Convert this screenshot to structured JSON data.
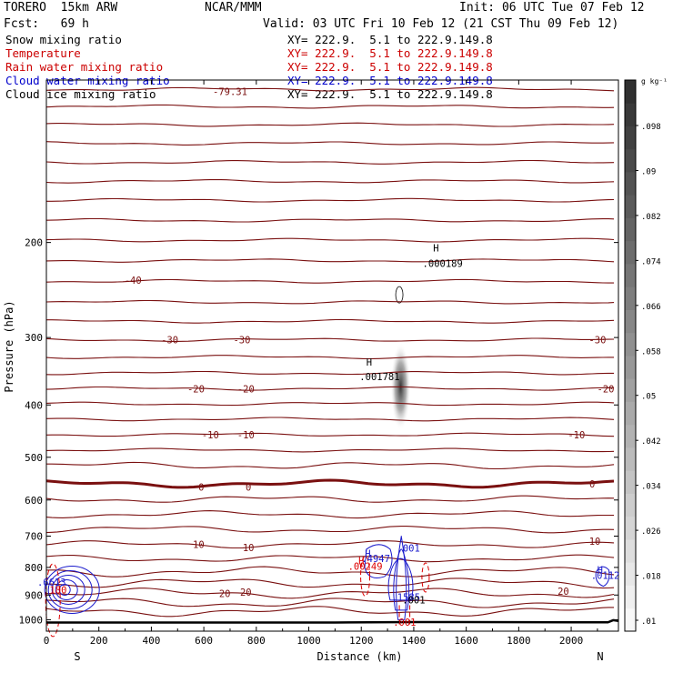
{
  "header": {
    "model": "TORERO  15km ARW",
    "org": "NCAR/MMM",
    "init": "Init: 06 UTC Tue 07 Feb 12",
    "fcst": "Fcst:   69 h",
    "valid": "Valid: 03 UTC Fri 10 Feb 12 (21 CST Thu 09 Feb 12)"
  },
  "fields": [
    {
      "name": "Snow mixing ratio",
      "xy": "XY= 222.9.  5.1 to 222.9.149.8",
      "color": "#000000"
    },
    {
      "name": "Temperature",
      "xy": "XY= 222.9.  5.1 to 222.9.149.8",
      "color": "#cc0000"
    },
    {
      "name": "Rain water mixing ratio",
      "xy": "XY= 222.9.  5.1 to 222.9.149.8",
      "color": "#cc0000"
    },
    {
      "name": "Cloud water mixing ratio",
      "xy": "XY= 222.9.  5.1 to 222.9.149.8",
      "color": "#0000cc"
    },
    {
      "name": "Cloud ice mixing ratio",
      "xy": "XY= 222.9.  5.1 to 222.9.149.8",
      "color": "#000000"
    }
  ],
  "colors": {
    "temperature": "#7a1010",
    "cloud_water": "#1a1acc",
    "rain_water": "#dd0000",
    "ground": "#000000"
  },
  "chart_data": {
    "type": "contour cross-section",
    "xlabel": "Distance (km)",
    "ylabel": "Pressure (hPa)",
    "xlim": [
      0,
      2180
    ],
    "ylim": [
      1050,
      100
    ],
    "y_scale": "log",
    "x_ticks": [
      "0",
      "200",
      "400",
      "600",
      "800",
      "1000",
      "1200",
      "1400",
      "1600",
      "1800",
      "2000"
    ],
    "y_ticks": [
      "200",
      "300",
      "400",
      "500",
      "600",
      "700",
      "800",
      "900",
      "1000"
    ],
    "end_labels": {
      "left": "S",
      "right": "N"
    },
    "temperature_contours": [
      {
        "p": 104
      },
      {
        "p": 112
      },
      {
        "p": 121
      },
      {
        "p": 131
      },
      {
        "p": 142
      },
      {
        "p": 154
      },
      {
        "p": 167
      },
      {
        "p": 182
      },
      {
        "p": 198
      },
      {
        "p": 216
      },
      {
        "p": 236
      },
      {
        "p": 258
      },
      {
        "p": 280
      },
      {
        "p": 303
      },
      {
        "p": 326
      },
      {
        "p": 349
      },
      {
        "p": 373
      },
      {
        "p": 398
      },
      {
        "p": 425
      },
      {
        "p": 454
      },
      {
        "p": 485
      },
      {
        "p": 518
      },
      {
        "p": 560,
        "thick": true
      },
      {
        "p": 598
      },
      {
        "p": 638
      },
      {
        "p": 680
      },
      {
        "p": 725
      },
      {
        "p": 770
      },
      {
        "p": 815
      },
      {
        "p": 855
      },
      {
        "p": 893
      },
      {
        "p": 930
      },
      {
        "p": 965
      }
    ],
    "temperature_labels": [
      {
        "text": "-79.31",
        "x": 700,
        "p": 105
      },
      {
        "text": "-40",
        "x": 330,
        "p": 235
      },
      {
        "text": "-30",
        "x": 470,
        "p": 303
      },
      {
        "text": "-30",
        "x": 745,
        "p": 303
      },
      {
        "text": "-30",
        "x": 2100,
        "p": 303
      },
      {
        "text": "-20",
        "x": 570,
        "p": 373
      },
      {
        "text": "-20",
        "x": 760,
        "p": 373
      },
      {
        "text": "-20",
        "x": 2150,
        "p": 373
      },
      {
        "text": "-10",
        "x": 625,
        "p": 454
      },
      {
        "text": "-10",
        "x": 760,
        "p": 454
      },
      {
        "text": "-10",
        "x": 2020,
        "p": 454
      },
      {
        "text": "0",
        "x": 590,
        "p": 568
      },
      {
        "text": "0",
        "x": 770,
        "p": 568
      },
      {
        "text": "0",
        "x": 2080,
        "p": 560
      },
      {
        "text": "10",
        "x": 580,
        "p": 725
      },
      {
        "text": "10",
        "x": 770,
        "p": 735
      },
      {
        "text": "10",
        "x": 2090,
        "p": 715
      },
      {
        "text": "20",
        "x": 680,
        "p": 893
      },
      {
        "text": "20",
        "x": 760,
        "p": 888
      },
      {
        "text": "20",
        "x": 1970,
        "p": 885
      }
    ],
    "extrema_labels": [
      {
        "text": "H",
        "x": 1485,
        "p": 208,
        "color": "#000000"
      },
      {
        "text": ".000189",
        "x": 1510,
        "p": 222,
        "color": "#000000"
      },
      {
        "text": "H",
        "x": 1230,
        "p": 338,
        "color": "#000000"
      },
      {
        "text": ".001781",
        "x": 1270,
        "p": 360,
        "color": "#000000"
      },
      {
        "text": "H",
        "x": 1225,
        "p": 765,
        "color": "#1a1acc"
      },
      {
        "text": ".4947",
        "x": 1255,
        "p": 782,
        "color": "#1a1acc"
      },
      {
        "text": "H",
        "x": 1200,
        "p": 790,
        "color": "#dd0000"
      },
      {
        "text": ".00249",
        "x": 1215,
        "p": 808,
        "color": "#dd0000"
      },
      {
        "text": ".001",
        "x": 1380,
        "p": 748,
        "color": "#1a1acc"
      },
      {
        "text": ".6613",
        "x": 20,
        "p": 865,
        "color": "#1a1acc"
      },
      {
        "text": "180",
        "x": 45,
        "p": 893,
        "color": "#dd0000"
      },
      {
        "text": ".1585",
        "x": 1370,
        "p": 922,
        "color": "#1a1acc"
      },
      {
        "text": ".001",
        "x": 1400,
        "p": 933,
        "color": "#000000"
      },
      {
        "text": ".001",
        "x": 1365,
        "p": 1025,
        "color": "#dd0000"
      },
      {
        "text": "H",
        "x": 2110,
        "p": 820,
        "color": "#1a1acc"
      },
      {
        "text": ".0112",
        "x": 2130,
        "p": 840,
        "color": "#1a1acc"
      }
    ],
    "colorbar": {
      "unit": "g kg⁻¹",
      "ticks": [
        ".098",
        ".09",
        ".082",
        ".074",
        ".066",
        ".058",
        ".05",
        ".042",
        ".034",
        ".026",
        ".018",
        ".01"
      ]
    }
  }
}
